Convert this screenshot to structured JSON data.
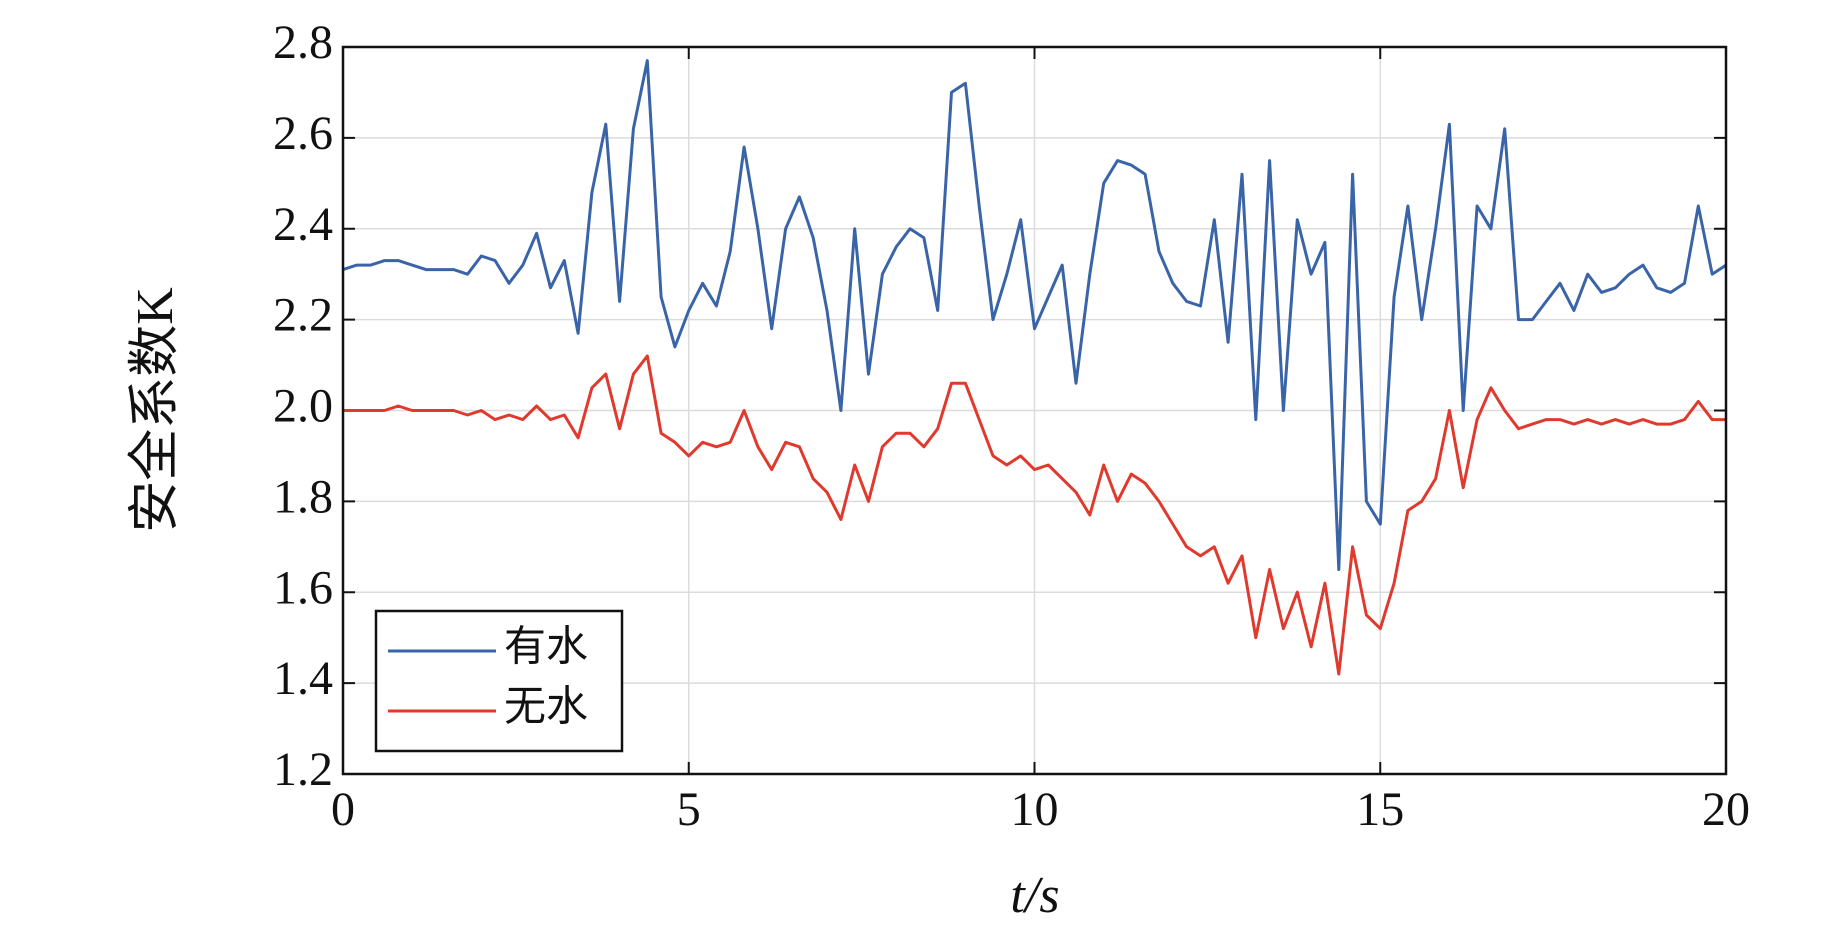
{
  "chart_data": {
    "type": "line",
    "xlabel": "t/s",
    "ylabel": "安全系数K",
    "x": [
      0,
      0.2,
      0.4,
      0.6,
      0.8,
      1,
      1.2,
      1.4,
      1.6,
      1.8,
      2,
      2.2,
      2.4,
      2.6,
      2.8,
      3,
      3.2,
      3.4,
      3.6,
      3.8,
      4,
      4.2,
      4.4,
      4.6,
      4.8,
      5,
      5.2,
      5.4,
      5.6,
      5.8,
      6,
      6.2,
      6.4,
      6.6,
      6.8,
      7,
      7.2,
      7.4,
      7.6,
      7.8,
      8,
      8.2,
      8.4,
      8.6,
      8.8,
      9,
      9.2,
      9.4,
      9.6,
      9.8,
      10,
      10.2,
      10.4,
      10.6,
      10.8,
      11,
      11.2,
      11.4,
      11.6,
      11.8,
      12,
      12.2,
      12.4,
      12.6,
      12.8,
      13,
      13.2,
      13.4,
      13.6,
      13.8,
      14,
      14.2,
      14.4,
      14.6,
      14.8,
      15,
      15.2,
      15.4,
      15.6,
      15.8,
      16,
      16.2,
      16.4,
      16.6,
      16.8,
      17,
      17.2,
      17.4,
      17.6,
      17.8,
      18,
      18.2,
      18.4,
      18.6,
      18.8,
      19,
      19.2,
      19.4,
      19.6,
      19.8,
      20
    ],
    "series": [
      {
        "name": "有水",
        "color": "#3a64a8",
        "values": [
          2.31,
          2.32,
          2.32,
          2.33,
          2.33,
          2.32,
          2.31,
          2.31,
          2.31,
          2.3,
          2.34,
          2.33,
          2.28,
          2.32,
          2.39,
          2.27,
          2.33,
          2.17,
          2.48,
          2.63,
          2.24,
          2.62,
          2.77,
          2.25,
          2.14,
          2.22,
          2.28,
          2.23,
          2.35,
          2.58,
          2.4,
          2.18,
          2.4,
          2.47,
          2.38,
          2.22,
          2.0,
          2.4,
          2.08,
          2.3,
          2.36,
          2.4,
          2.38,
          2.22,
          2.7,
          2.72,
          2.45,
          2.2,
          2.3,
          2.42,
          2.18,
          2.25,
          2.32,
          2.06,
          2.3,
          2.5,
          2.55,
          2.54,
          2.52,
          2.35,
          2.28,
          2.24,
          2.23,
          2.42,
          2.15,
          2.52,
          1.98,
          2.55,
          2.0,
          2.42,
          2.3,
          2.37,
          1.65,
          2.52,
          1.8,
          1.75,
          2.25,
          2.45,
          2.2,
          2.4,
          2.63,
          2.0,
          2.45,
          2.4,
          2.62,
          2.2,
          2.2,
          2.24,
          2.28,
          2.22,
          2.3,
          2.26,
          2.27,
          2.3,
          2.32,
          2.27,
          2.26,
          2.28,
          2.45,
          2.3,
          2.32
        ]
      },
      {
        "name": "无水",
        "color": "#e03a2e",
        "values": [
          2.0,
          2.0,
          2.0,
          2.0,
          2.01,
          2.0,
          2.0,
          2.0,
          2.0,
          1.99,
          2.0,
          1.98,
          1.99,
          1.98,
          2.01,
          1.98,
          1.99,
          1.94,
          2.05,
          2.08,
          1.96,
          2.08,
          2.12,
          1.95,
          1.93,
          1.9,
          1.93,
          1.92,
          1.93,
          2.0,
          1.92,
          1.87,
          1.93,
          1.92,
          1.85,
          1.82,
          1.76,
          1.88,
          1.8,
          1.92,
          1.95,
          1.95,
          1.92,
          1.96,
          2.06,
          2.06,
          1.98,
          1.9,
          1.88,
          1.9,
          1.87,
          1.88,
          1.85,
          1.82,
          1.77,
          1.88,
          1.8,
          1.86,
          1.84,
          1.8,
          1.75,
          1.7,
          1.68,
          1.7,
          1.62,
          1.68,
          1.5,
          1.65,
          1.52,
          1.6,
          1.48,
          1.62,
          1.42,
          1.7,
          1.55,
          1.52,
          1.62,
          1.78,
          1.8,
          1.85,
          2.0,
          1.83,
          1.98,
          2.05,
          2.0,
          1.96,
          1.97,
          1.98,
          1.98,
          1.97,
          1.98,
          1.97,
          1.98,
          1.97,
          1.98,
          1.97,
          1.97,
          1.98,
          2.02,
          1.98,
          1.98
        ]
      }
    ],
    "xlim": [
      0,
      20
    ],
    "xticks": [
      0,
      5,
      10,
      15,
      20
    ],
    "ylim": [
      1.2,
      2.8
    ],
    "yticks": [
      {
        "value": 1.2,
        "label": "1.2"
      },
      1.4,
      1.6,
      1.8,
      {
        "value": 2.0,
        "label": "2.0"
      },
      2.2,
      2.4,
      2.6,
      2.8
    ],
    "grid": true,
    "legend": "lower left"
  }
}
